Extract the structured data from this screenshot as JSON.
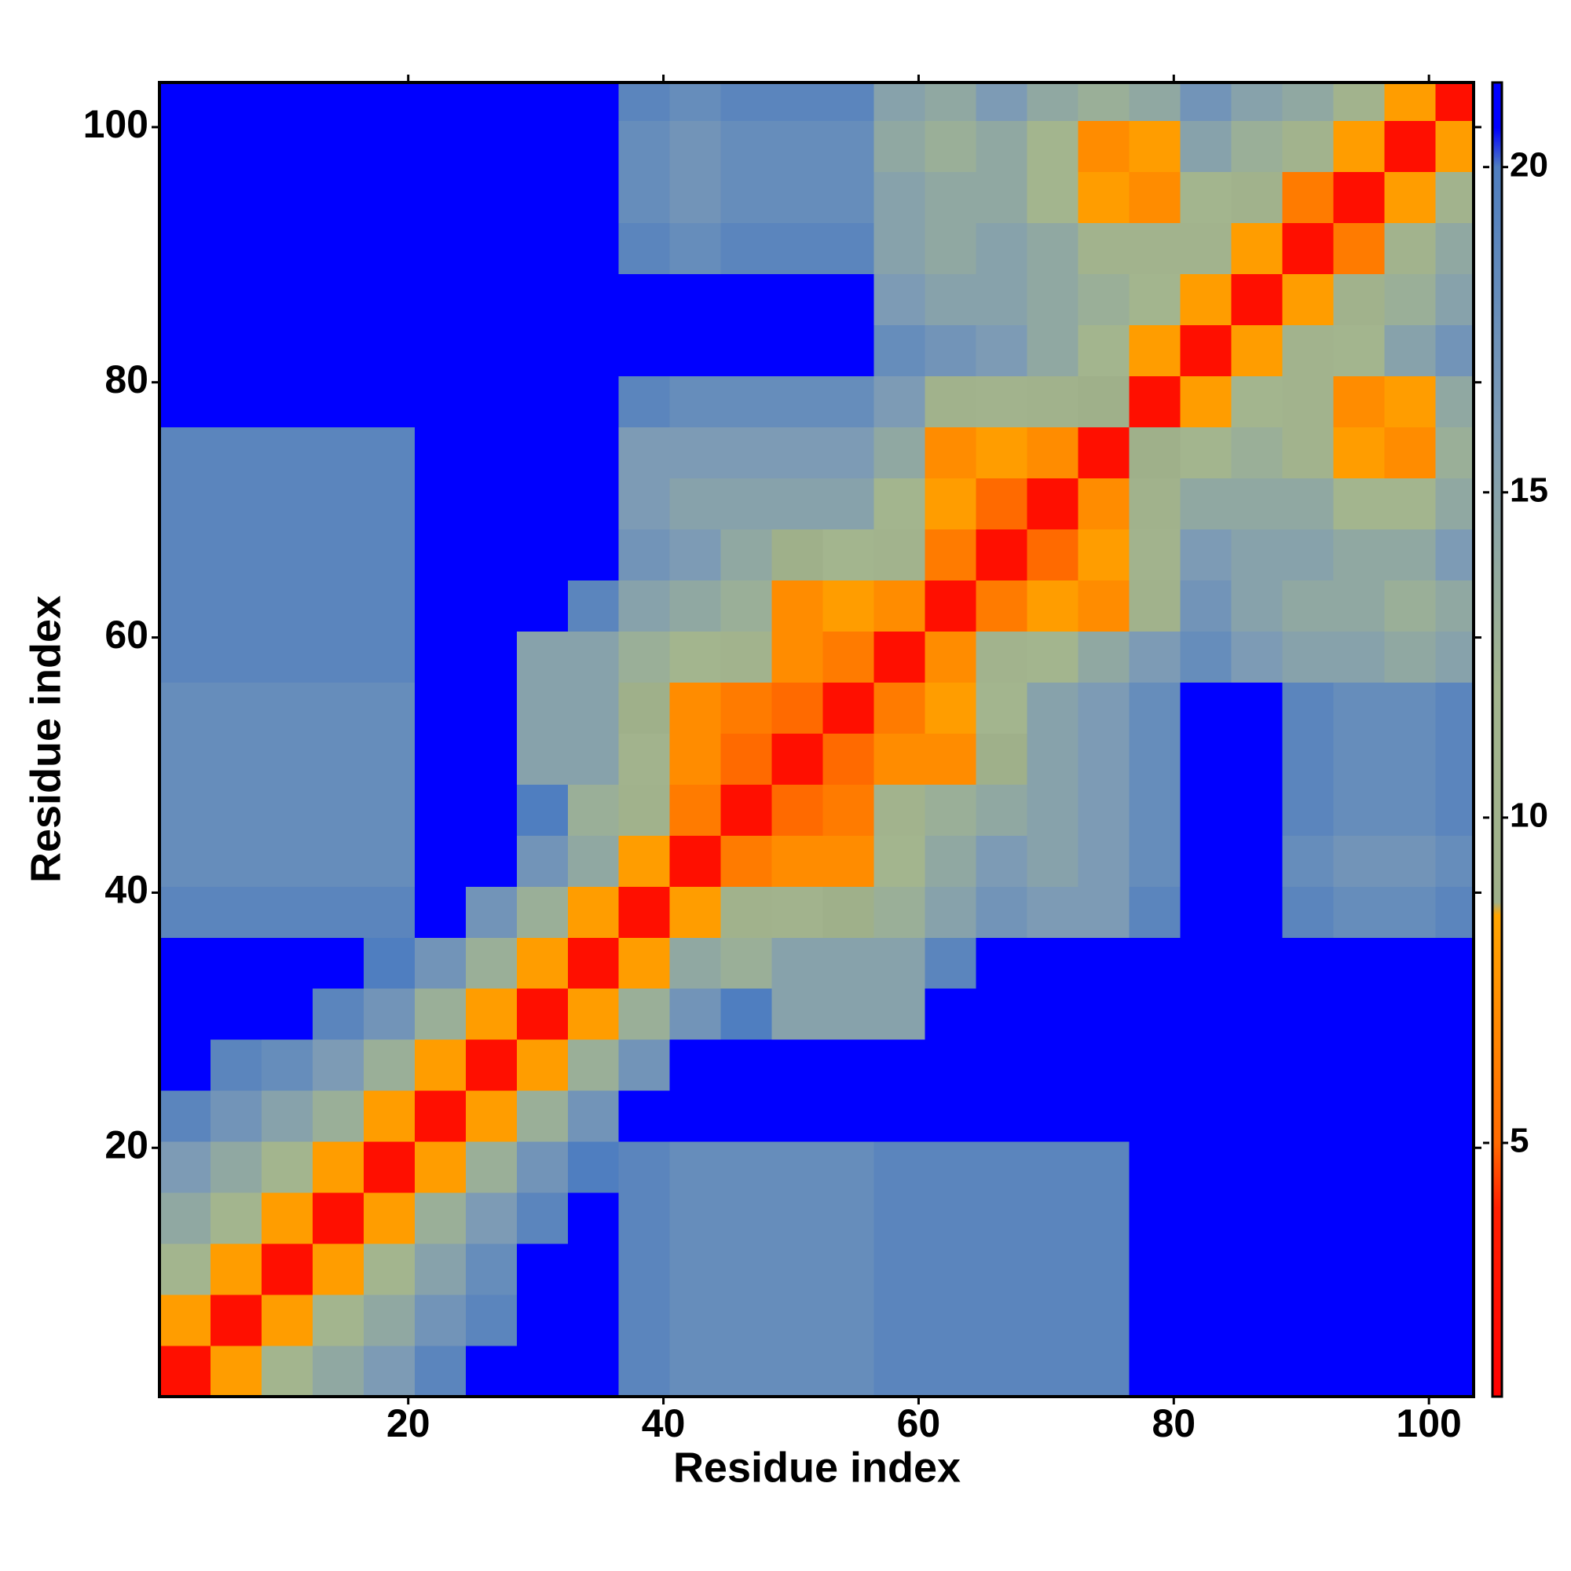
{
  "chart_data": {
    "type": "heatmap",
    "xlabel": "Residue index",
    "ylabel": "Residue index",
    "xlim": [
      0.5,
      103.5
    ],
    "ylim": [
      0.5,
      103.5
    ],
    "xticks": [
      20,
      40,
      60,
      80,
      100
    ],
    "yticks": [
      20,
      40,
      60,
      80,
      100
    ],
    "xbins": [
      0.5,
      4.5,
      8.5,
      12.5,
      16.5,
      20.5,
      24.5,
      28.5,
      32.5,
      36.5,
      40.5,
      44.5,
      48.5,
      52.5,
      56.5,
      60.5,
      64.5,
      68.5,
      72.5,
      76.5,
      80.5,
      84.5,
      88.5,
      92.5,
      96.5,
      100.5,
      103.5
    ],
    "ybins": [
      0.5,
      4.5,
      8.5,
      12.5,
      16.5,
      20.5,
      24.5,
      28.5,
      32.5,
      36.5,
      40.5,
      44.5,
      48.5,
      52.5,
      56.5,
      60.5,
      64.5,
      68.5,
      72.5,
      76.5,
      80.5,
      84.5,
      88.5,
      92.5,
      96.5,
      100.5,
      103.5
    ],
    "zlim": [
      1.1,
      21.3
    ],
    "zticks": [
      5,
      10,
      15,
      20
    ],
    "colorscale": [
      [
        1.1,
        "#ff0000"
      ],
      [
        4,
        "#ff2000"
      ],
      [
        5,
        "#ff6a00"
      ],
      [
        8.5,
        "#ffa500"
      ],
      [
        8.7,
        "#9fb08a"
      ],
      [
        12,
        "#a3b58e"
      ],
      [
        16,
        "#7d9bb5"
      ],
      [
        20,
        "#4f7ec0"
      ],
      [
        20.6,
        "#0000ff"
      ]
    ],
    "z": [
      [
        2.5,
        8,
        12,
        14,
        16,
        19,
        21,
        21,
        21,
        19,
        18,
        18,
        18,
        18,
        19,
        19,
        19,
        19,
        19,
        21,
        21,
        21,
        21,
        21,
        21,
        21
      ],
      [
        8,
        2.5,
        8,
        12,
        14,
        17,
        19,
        21,
        21,
        19,
        18,
        18,
        18,
        18,
        19,
        19,
        19,
        19,
        19,
        21,
        21,
        21,
        21,
        21,
        21,
        21
      ],
      [
        12,
        8,
        2.5,
        8,
        12,
        15,
        18,
        21,
        21,
        19,
        18,
        18,
        18,
        18,
        19,
        19,
        19,
        19,
        19,
        21,
        21,
        21,
        21,
        21,
        21,
        21
      ],
      [
        14,
        12,
        8,
        2.5,
        8,
        13,
        16,
        19,
        21,
        19,
        18,
        18,
        18,
        18,
        19,
        19,
        19,
        19,
        19,
        21,
        21,
        21,
        21,
        21,
        21,
        21
      ],
      [
        16,
        14,
        12,
        8,
        2.5,
        8,
        13,
        17,
        20,
        19,
        18,
        18,
        18,
        18,
        19,
        19,
        19,
        19,
        19,
        21,
        21,
        21,
        21,
        21,
        21,
        21
      ],
      [
        19,
        17,
        15,
        13,
        8,
        2.5,
        8,
        13,
        17,
        21,
        21,
        21,
        21,
        21,
        21,
        21,
        21,
        21,
        21,
        21,
        21,
        21,
        21,
        21,
        21,
        21
      ],
      [
        21,
        19,
        18,
        16,
        13,
        8,
        2.5,
        8,
        13,
        17,
        21,
        21,
        21,
        21,
        21,
        21,
        21,
        21,
        21,
        21,
        21,
        21,
        21,
        21,
        21,
        21
      ],
      [
        21,
        21,
        21,
        19,
        17,
        13,
        8,
        2.5,
        8,
        13,
        17,
        20,
        15,
        15,
        15,
        21,
        21,
        21,
        21,
        21,
        21,
        21,
        21,
        21,
        21,
        21
      ],
      [
        21,
        21,
        21,
        21,
        20,
        17,
        13,
        8,
        2.5,
        8,
        14,
        13,
        15,
        15,
        15,
        19,
        21,
        21,
        21,
        21,
        21,
        21,
        21,
        21,
        21,
        21
      ],
      [
        19,
        19,
        19,
        19,
        19,
        21,
        17,
        13,
        8,
        2.5,
        8,
        10,
        11,
        9,
        13,
        15,
        17,
        16,
        16,
        19,
        21,
        21,
        19,
        18,
        18,
        19
      ],
      [
        18,
        18,
        18,
        18,
        18,
        21,
        21,
        17,
        14,
        8,
        2.5,
        6,
        7,
        7,
        12,
        14,
        16,
        15,
        16,
        18,
        21,
        21,
        18,
        17,
        17,
        18
      ],
      [
        18,
        18,
        18,
        18,
        18,
        21,
        21,
        20,
        13,
        10,
        6,
        2.5,
        5,
        6,
        11,
        13,
        14,
        15,
        16,
        18,
        21,
        21,
        19,
        18,
        18,
        19
      ],
      [
        18,
        18,
        18,
        18,
        18,
        21,
        21,
        15,
        15,
        11,
        7,
        5,
        2.5,
        5,
        7,
        7,
        9,
        15,
        16,
        18,
        21,
        21,
        19,
        18,
        18,
        19
      ],
      [
        18,
        18,
        18,
        18,
        18,
        21,
        21,
        15,
        15,
        9,
        7,
        6,
        5,
        2.5,
        6,
        8,
        12,
        15,
        16,
        18,
        21,
        21,
        19,
        18,
        18,
        19
      ],
      [
        19,
        19,
        19,
        19,
        19,
        21,
        21,
        15,
        15,
        13,
        12,
        11,
        7,
        6,
        2.5,
        7,
        11,
        12,
        14,
        16,
        18,
        16,
        15,
        15,
        14,
        15
      ],
      [
        19,
        19,
        19,
        19,
        19,
        21,
        21,
        21,
        19,
        15,
        14,
        13,
        7,
        8,
        7,
        2.5,
        6,
        8,
        7,
        10,
        17,
        15,
        14,
        14,
        13,
        14
      ],
      [
        19,
        19,
        19,
        19,
        19,
        21,
        21,
        21,
        21,
        17,
        16,
        14,
        9,
        12,
        11,
        6,
        2.5,
        5,
        8,
        11,
        16,
        15,
        15,
        14,
        14,
        16
      ],
      [
        19,
        19,
        19,
        19,
        19,
        21,
        21,
        21,
        21,
        16,
        15,
        15,
        15,
        15,
        12,
        8,
        5,
        2.5,
        7,
        10,
        14,
        14,
        14,
        12,
        12,
        14
      ],
      [
        19,
        19,
        19,
        19,
        19,
        21,
        21,
        21,
        21,
        16,
        16,
        16,
        16,
        16,
        14,
        7,
        8,
        7,
        2.5,
        9,
        12,
        13,
        11,
        8,
        7,
        13
      ],
      [
        21,
        21,
        21,
        21,
        21,
        21,
        21,
        21,
        21,
        19,
        18,
        18,
        18,
        18,
        16,
        10,
        11,
        10,
        9,
        2.5,
        8,
        12,
        11,
        7,
        8,
        14
      ],
      [
        21,
        21,
        21,
        21,
        21,
        21,
        21,
        21,
        21,
        21,
        21,
        21,
        21,
        21,
        18,
        17,
        16,
        14,
        12,
        8,
        2.5,
        8,
        11,
        12,
        15,
        17
      ],
      [
        21,
        21,
        21,
        21,
        21,
        21,
        21,
        21,
        21,
        21,
        21,
        21,
        21,
        21,
        16,
        15,
        15,
        14,
        13,
        12,
        8,
        2.5,
        8,
        10,
        13,
        15
      ],
      [
        21,
        21,
        21,
        21,
        21,
        21,
        21,
        21,
        21,
        19,
        18,
        19,
        19,
        19,
        15,
        14,
        15,
        14,
        11,
        11,
        11,
        8,
        2.5,
        6,
        11,
        14
      ],
      [
        21,
        21,
        21,
        21,
        21,
        21,
        21,
        21,
        21,
        18,
        17,
        18,
        18,
        18,
        15,
        14,
        14,
        12,
        8,
        7,
        12,
        10,
        6,
        2.5,
        8,
        11
      ],
      [
        21,
        21,
        21,
        21,
        21,
        21,
        21,
        21,
        21,
        18,
        17,
        18,
        18,
        18,
        14,
        13,
        14,
        12,
        7,
        8,
        15,
        13,
        11,
        8,
        2.5,
        8
      ],
      [
        21,
        21,
        21,
        21,
        21,
        21,
        21,
        21,
        21,
        19,
        18,
        19,
        19,
        19,
        15,
        14,
        16,
        14,
        13,
        14,
        17,
        15,
        14,
        11,
        8,
        2.5
      ]
    ]
  }
}
